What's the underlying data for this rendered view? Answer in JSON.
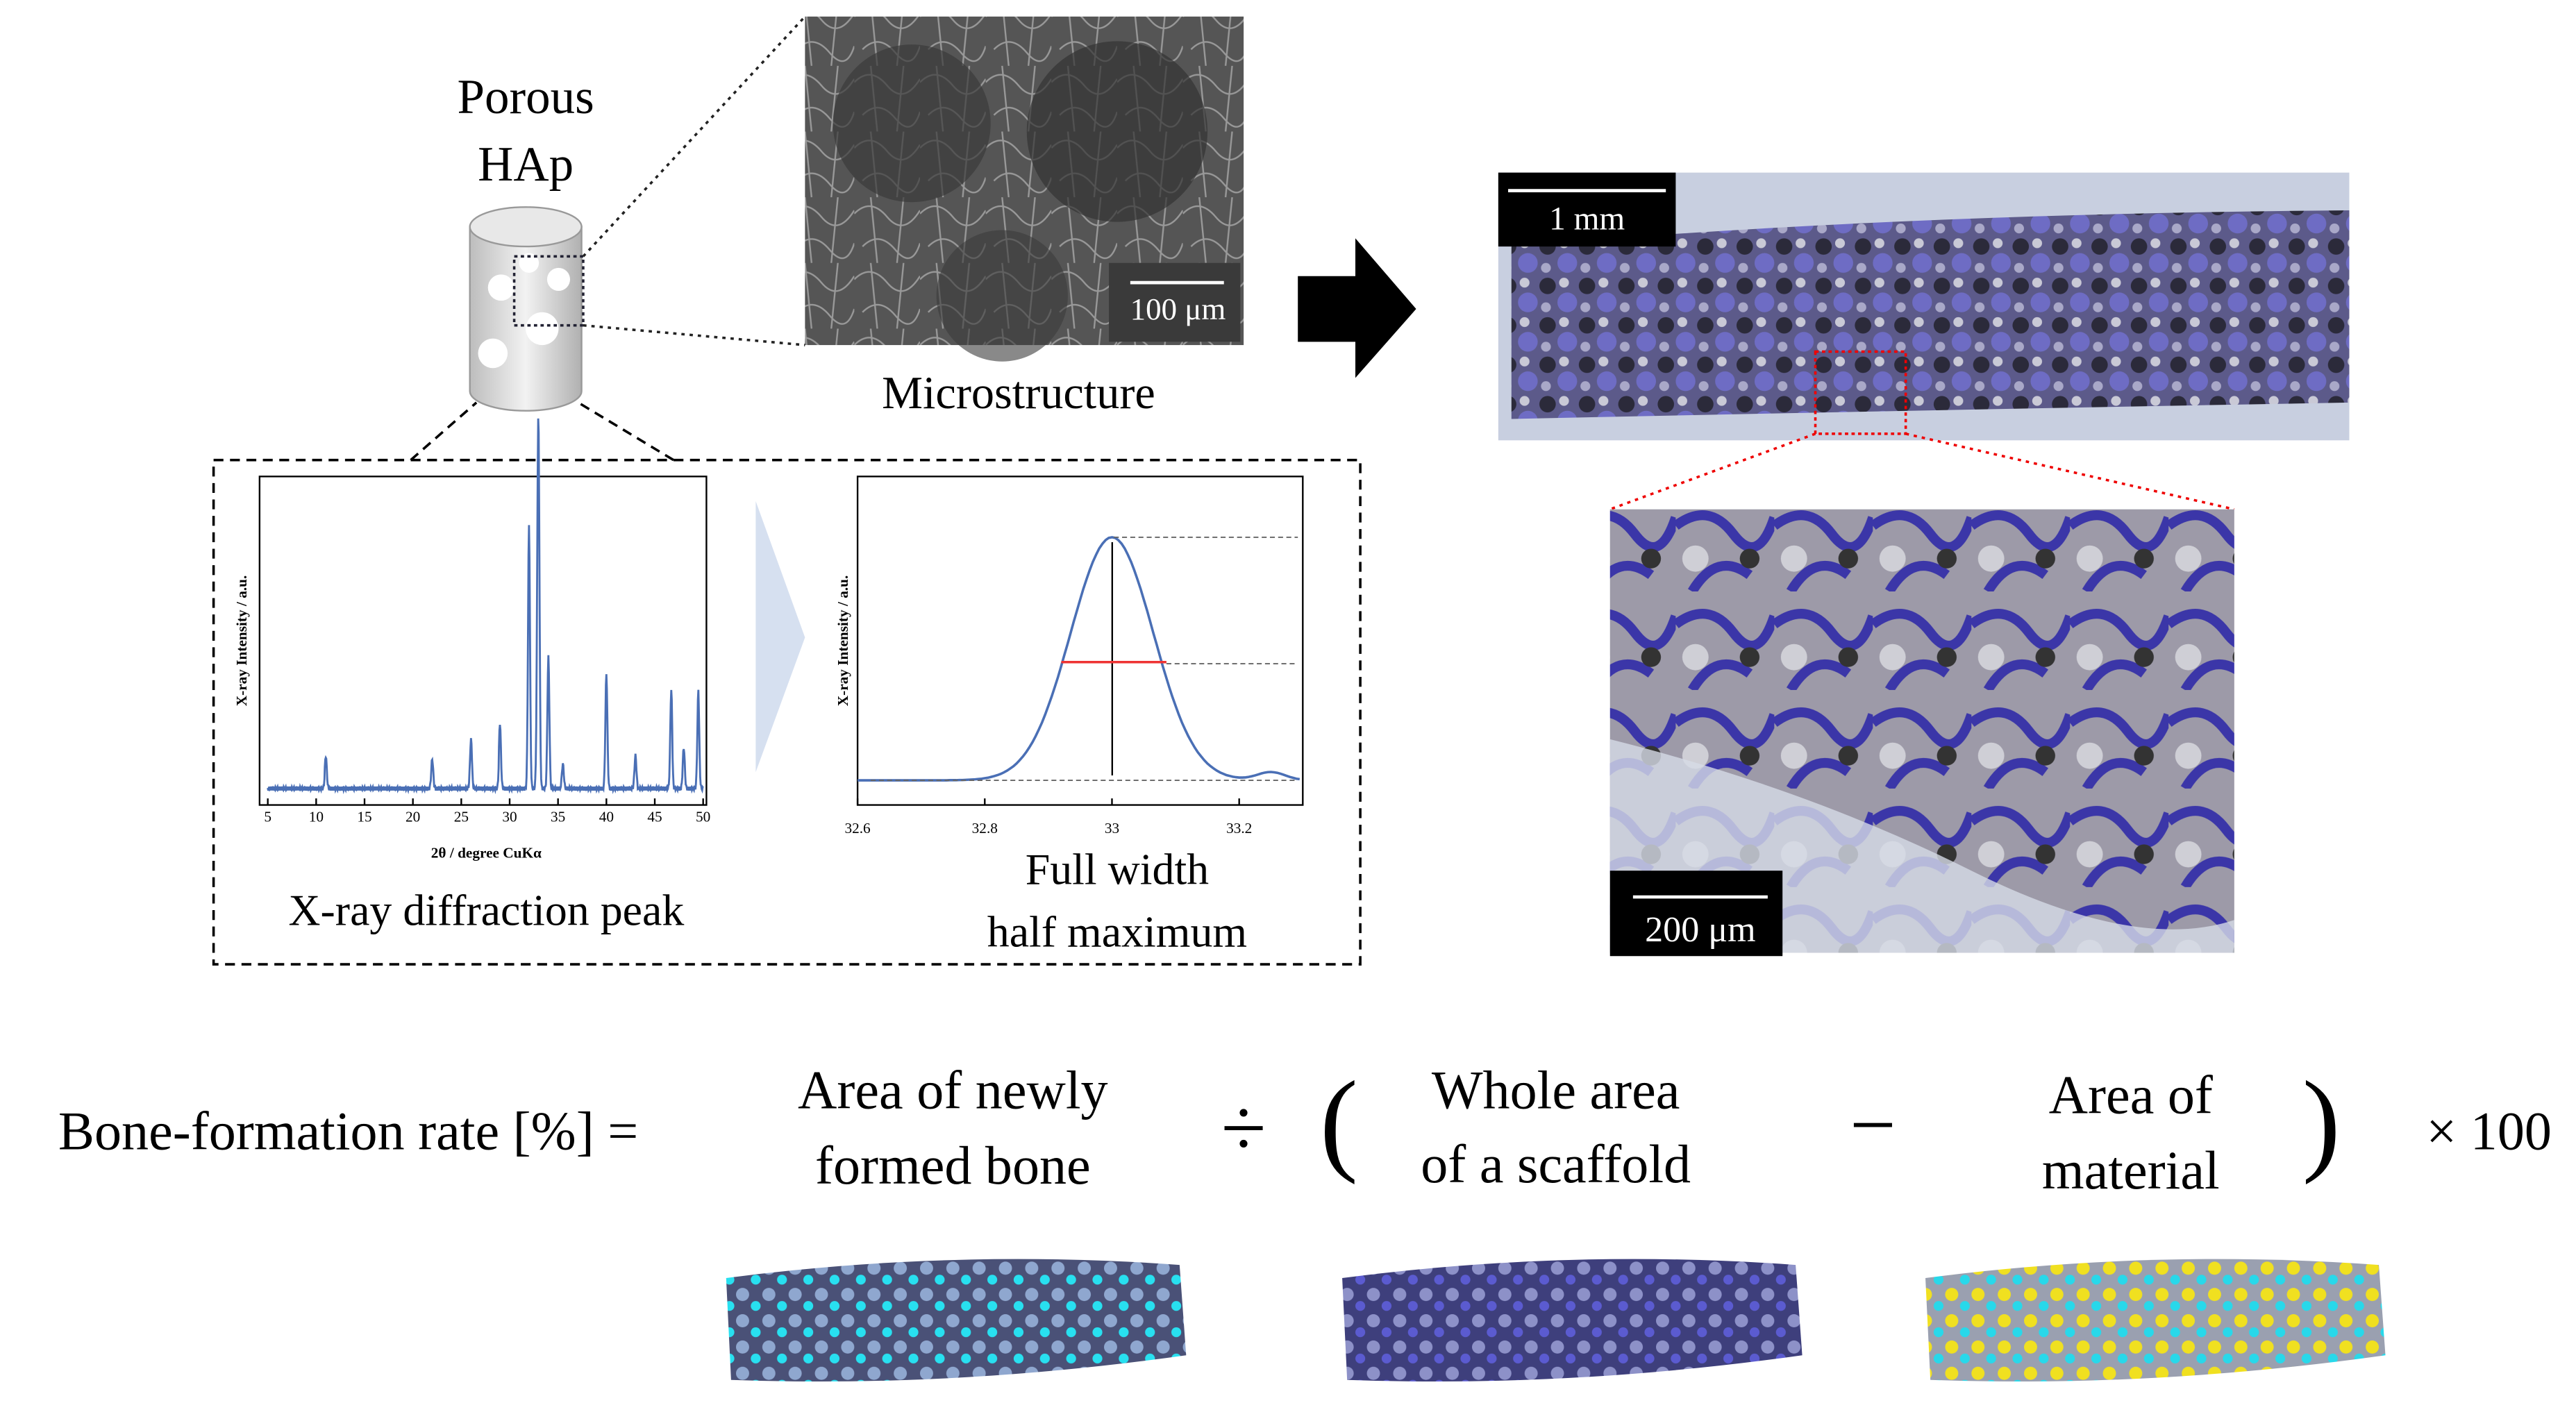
{
  "porous_hap": [
    "Porous",
    "HAp"
  ],
  "microstructure": {
    "caption": "Microstructure",
    "scale_bar": "100 μm"
  },
  "xrd_pattern": {
    "y_label": "X-ray Intensity / a.u.",
    "x_label": "2θ / degree CuKα",
    "xticks": [
      5,
      10,
      15,
      20,
      25,
      30,
      35,
      40,
      45,
      50
    ],
    "caption": "X-ray diffraction peak"
  },
  "fwhm_plot": {
    "y_label": "X-ray Intensity / a.u.",
    "xticks": [
      32.6,
      32.8,
      33,
      33.2
    ],
    "caption": [
      "Full width",
      "half maximum"
    ]
  },
  "histology": {
    "scale_bar_low": "1 mm",
    "scale_bar_high": "200 μm"
  },
  "equation": {
    "lhs": "Bone-formation rate [%] =",
    "term1": [
      "Area of newly",
      "formed bone"
    ],
    "divide": "÷",
    "open_paren": "(",
    "term2": [
      "Whole area",
      "of a scaffold"
    ],
    "minus": "−",
    "term3": [
      "Area of",
      "material"
    ],
    "close_paren": ")",
    "multiplier": "× 100"
  }
}
